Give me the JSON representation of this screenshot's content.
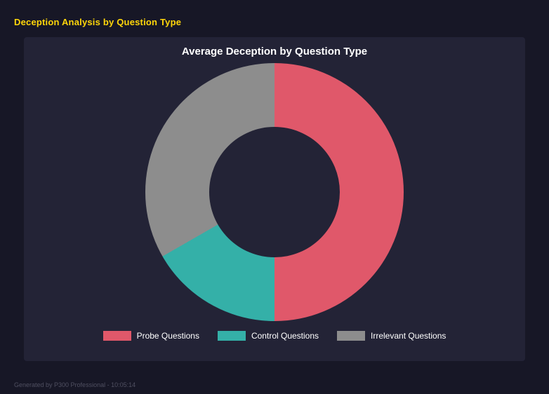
{
  "page": {
    "title": "Deception Analysis by Question Type",
    "footer": "Generated by P300 Professional - 10:05:14"
  },
  "chart_data": {
    "type": "pie",
    "donut": true,
    "title": "Average Deception by Question Type",
    "categories": [
      "Probe Questions",
      "Control Questions",
      "Irrelevant Questions"
    ],
    "values": [
      50.0,
      16.7,
      33.3
    ],
    "colors": [
      "#e0586a",
      "#34b0a8",
      "#8d8d8d"
    ],
    "legend_position": "bottom",
    "start_angle_deg": 0,
    "direction": "clockwise"
  }
}
